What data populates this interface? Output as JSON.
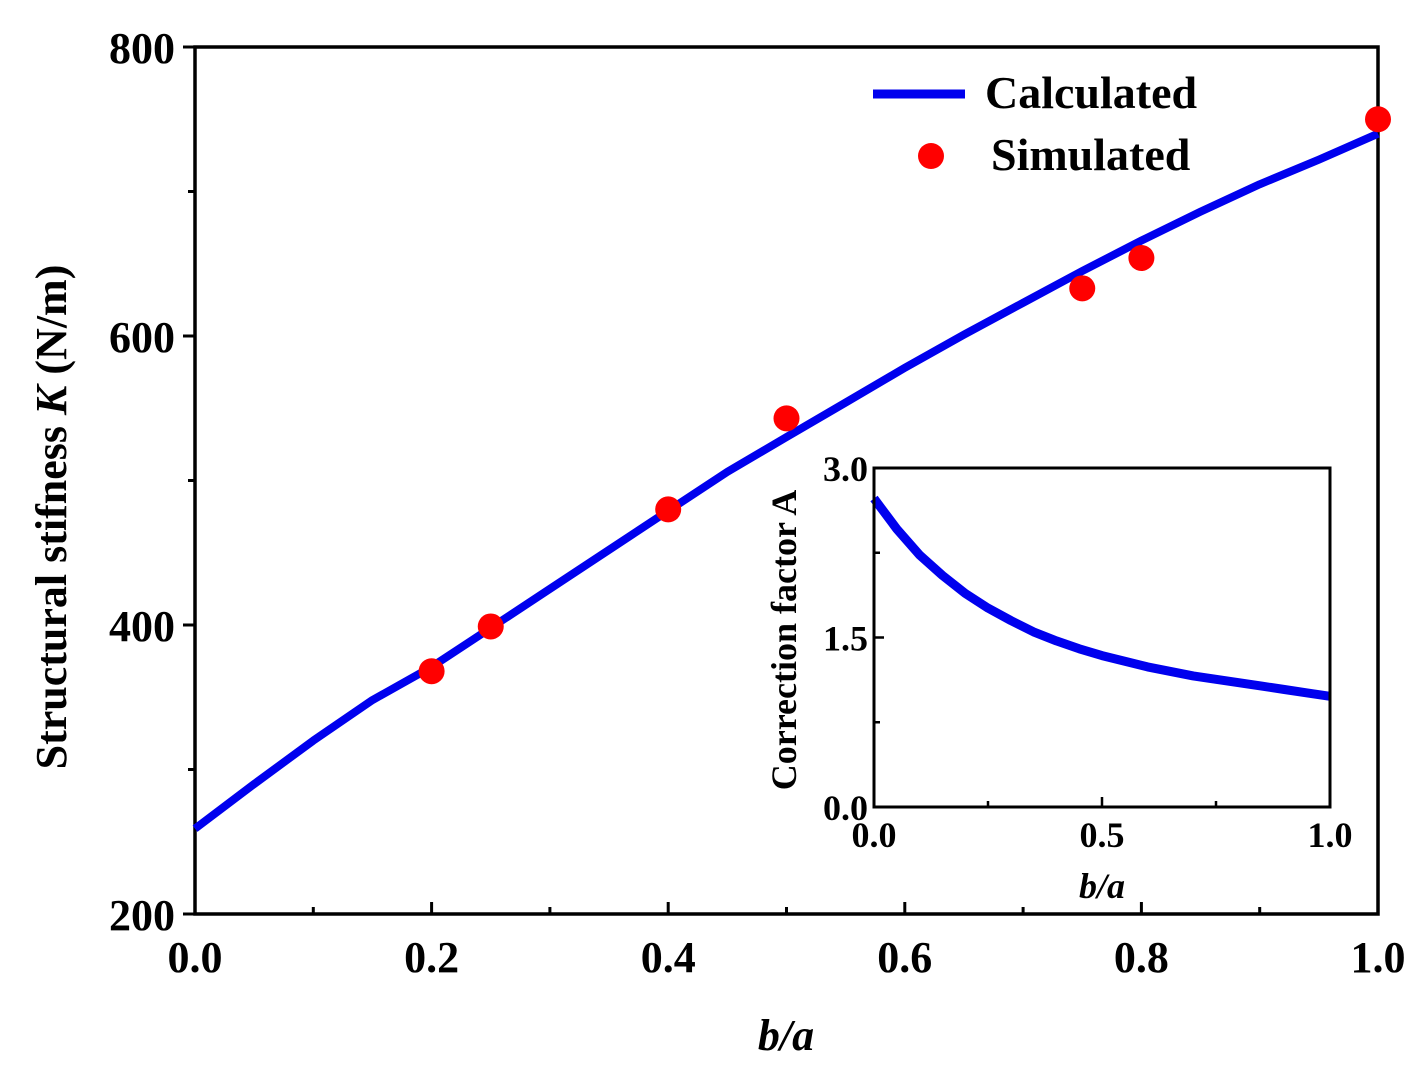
{
  "chart_data": [
    {
      "type": "line",
      "xlabel_prefix": "",
      "xlabel": "b/a",
      "ylabel_prefix": "Structural stifness ",
      "ylabel_symbol": "K",
      "ylabel_suffix": " (N/m)",
      "xlim": [
        0,
        1.0
      ],
      "ylim": [
        200,
        800
      ],
      "xticks": [
        0.0,
        0.2,
        0.4,
        0.6,
        0.8,
        1.0
      ],
      "xtick_labels": [
        "0.0",
        "0.2",
        "0.4",
        "0.6",
        "0.8",
        "1.0"
      ],
      "yticks": [
        200,
        400,
        600,
        800
      ],
      "ytick_labels": [
        "200",
        "400",
        "600",
        "800"
      ],
      "legend_position": "top-right",
      "series": [
        {
          "name": "Calculated",
          "kind": "line",
          "color": "#0000ee",
          "x": [
            0.0,
            0.05,
            0.1,
            0.15,
            0.2,
            0.25,
            0.3,
            0.35,
            0.4,
            0.45,
            0.5,
            0.55,
            0.6,
            0.65,
            0.7,
            0.75,
            0.8,
            0.85,
            0.9,
            0.95,
            1.0
          ],
          "y": [
            259,
            290,
            320,
            348,
            371,
            398,
            425,
            452,
            479,
            506,
            530,
            554,
            578,
            601,
            623,
            645,
            666,
            686,
            705,
            722,
            740
          ]
        },
        {
          "name": "Simulated",
          "kind": "scatter",
          "color": "#ff0000",
          "x": [
            0.2,
            0.25,
            0.4,
            0.5,
            0.75,
            0.8,
            1.0
          ],
          "y": [
            368,
            399,
            480,
            543,
            633,
            654,
            750
          ]
        }
      ]
    },
    {
      "type": "line",
      "role": "inset",
      "xlabel": "b/a",
      "ylabel": "Correction factor A",
      "xlim": [
        0,
        1.0
      ],
      "ylim": [
        0,
        3.0
      ],
      "xticks": [
        0.0,
        0.5,
        1.0
      ],
      "xtick_labels": [
        "0.0",
        "0.5",
        "1.0"
      ],
      "yticks": [
        0.0,
        1.5,
        3.0
      ],
      "ytick_labels": [
        "0.0",
        "1.5",
        "3.0"
      ],
      "series": [
        {
          "name": "Correction factor A",
          "kind": "line",
          "color": "#0000ee",
          "x": [
            0.0,
            0.05,
            0.1,
            0.15,
            0.2,
            0.25,
            0.3,
            0.35,
            0.4,
            0.45,
            0.5,
            0.55,
            0.6,
            0.65,
            0.7,
            0.75,
            0.8,
            0.85,
            0.9,
            0.95,
            1.0
          ],
          "y": [
            2.73,
            2.46,
            2.23,
            2.05,
            1.89,
            1.76,
            1.65,
            1.55,
            1.47,
            1.4,
            1.34,
            1.29,
            1.24,
            1.2,
            1.16,
            1.13,
            1.1,
            1.07,
            1.04,
            1.01,
            0.98
          ]
        }
      ]
    }
  ]
}
